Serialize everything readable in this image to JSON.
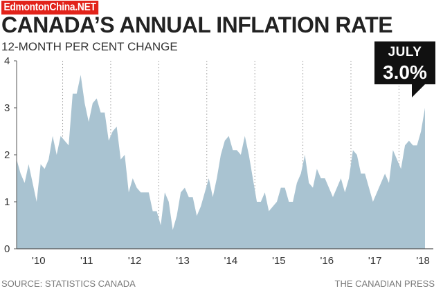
{
  "watermark": "EdmontonChina.NET",
  "source": "SOURCE: STATISTICS CANADA",
  "credit": "THE CANADIAN PRESS",
  "callout": {
    "month": "JULY",
    "value": "3.0%"
  },
  "colors": {
    "area": "#a9c3d1",
    "callout_bg": "#111111",
    "axis": "#555555"
  },
  "chart_data": {
    "type": "area",
    "title": "CANADA’S ANNUAL INFLATION RATE",
    "subtitle": "12-MONTH PER CENT CHANGE",
    "xlabel": "",
    "ylabel": "",
    "ylim": [
      0,
      4
    ],
    "yticks": [
      0,
      1,
      2,
      3,
      4
    ],
    "grid": "vertical dotted lines at year boundaries",
    "xticks": [
      "'10",
      "'11",
      "'12",
      "'13",
      "'14",
      "'15",
      "'16",
      "'17",
      "'18"
    ],
    "x_start": "January 2010",
    "x_end": "July 2018",
    "series": [
      {
        "name": "Annual inflation rate (%)",
        "values": [
          1.9,
          1.6,
          1.4,
          1.8,
          1.4,
          1.0,
          1.8,
          1.7,
          1.9,
          2.4,
          2.0,
          2.4,
          2.3,
          2.2,
          3.3,
          3.3,
          3.7,
          3.1,
          2.7,
          3.1,
          3.2,
          2.9,
          2.9,
          2.3,
          2.5,
          2.6,
          1.9,
          2.0,
          1.2,
          1.5,
          1.3,
          1.2,
          1.2,
          1.2,
          0.8,
          0.8,
          0.5,
          1.2,
          1.0,
          0.4,
          0.7,
          1.2,
          1.3,
          1.1,
          1.1,
          0.7,
          0.9,
          1.2,
          1.5,
          1.1,
          1.5,
          2.0,
          2.3,
          2.4,
          2.1,
          2.1,
          2.0,
          2.4,
          2.0,
          1.5,
          1.0,
          1.0,
          1.2,
          0.8,
          0.9,
          1.0,
          1.3,
          1.3,
          1.0,
          1.0,
          1.4,
          1.6,
          2.0,
          1.4,
          1.3,
          1.7,
          1.5,
          1.5,
          1.3,
          1.1,
          1.3,
          1.5,
          1.2,
          1.5,
          2.1,
          2.0,
          1.6,
          1.6,
          1.3,
          1.0,
          1.2,
          1.4,
          1.6,
          1.4,
          2.1,
          1.9,
          1.7,
          2.2,
          2.3,
          2.2,
          2.2,
          2.5,
          3.0
        ]
      }
    ]
  }
}
